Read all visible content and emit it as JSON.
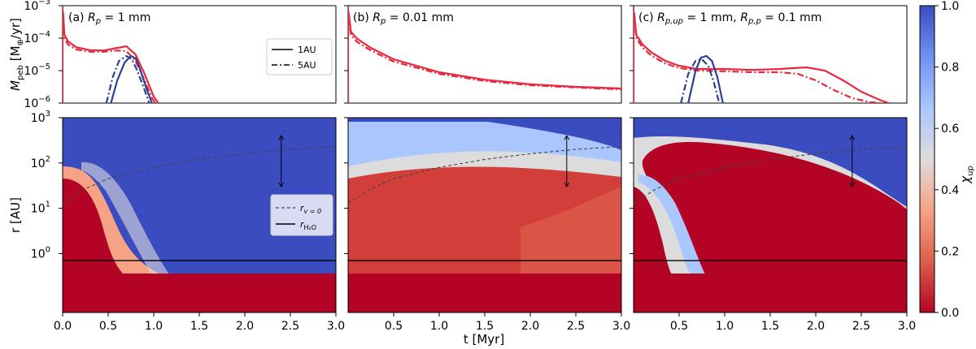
{
  "chart_data": {
    "type": "heatmap",
    "panels": [
      {
        "id": "a",
        "label": "(a)",
        "title_math": [
          "R",
          "p",
          " = 1 mm"
        ]
      },
      {
        "id": "b",
        "label": "(b)",
        "title_math": [
          "R",
          "p",
          " = 0.01 mm"
        ]
      },
      {
        "id": "c",
        "label": "(c)",
        "title_math": [
          "R",
          "p,up",
          " = 1 mm, ",
          "R",
          "p,p",
          " = 0.1 mm"
        ]
      }
    ],
    "x_axis": {
      "label": "t [Myr]",
      "range": [
        0,
        3
      ],
      "ticks_first": [
        "0.0",
        "0.5",
        "1.0",
        "1.5",
        "2.0",
        "2.5",
        "3.0"
      ],
      "ticks_other": [
        "0.5",
        "1.0",
        "1.5",
        "2.0",
        "2.5",
        "3.0"
      ]
    },
    "top_y_axis": {
      "label_main": "M",
      "label_sub": "peb",
      "label_units": " [M",
      "label_units_sub": "⊕",
      "label_units_end": "/yr]",
      "range_log10": [
        -6,
        -3
      ],
      "ticks": [
        {
          "base": "10",
          "exp": "−3"
        },
        {
          "base": "10",
          "exp": "−4"
        },
        {
          "base": "10",
          "exp": "−5"
        },
        {
          "base": "10",
          "exp": "−6"
        }
      ]
    },
    "bottom_y_axis": {
      "label": "r [AU]",
      "range_log10": [
        -1.3,
        3
      ],
      "ticks": [
        {
          "base": "10",
          "exp": "3"
        },
        {
          "base": "10",
          "exp": "2"
        },
        {
          "base": "10",
          "exp": "1"
        },
        {
          "base": "10",
          "exp": "0"
        }
      ]
    },
    "colorbar": {
      "label_main": "χ",
      "label_sub": "up",
      "range": [
        0,
        1
      ],
      "ticks": [
        "0.0",
        "0.2",
        "0.4",
        "0.6",
        "0.8",
        "1.0"
      ],
      "colors": [
        "#b40426",
        "#dd5f4b",
        "#f6a385",
        "#dddcdc",
        "#aac7fd",
        "#6f92f3",
        "#3b4cc0"
      ]
    },
    "legend_top": [
      {
        "label": "1AU",
        "style": "solid"
      },
      {
        "label": "5AU",
        "style": "dashdot"
      }
    ],
    "legend_bottom": [
      {
        "label_main": "r",
        "label_sub": "v = 0",
        "style": "dashed"
      },
      {
        "label_main": "r",
        "label_sub": "H₂O",
        "style": "solid"
      }
    ],
    "series_colors": {
      "red": "#e8283c",
      "blue": "#2f3f93",
      "water_line": "#000000",
      "rv0": "#444444"
    },
    "snowline_r_au": 0.7,
    "rv0_curve": {
      "t": [
        0,
        0.25,
        0.5,
        1.0,
        1.5,
        2.0,
        2.5,
        3.0
      ],
      "r_au": [
        13,
        27,
        45,
        80,
        120,
        160,
        200,
        230
      ]
    },
    "arrow": {
      "t": 2.4,
      "r_low": 30,
      "r_high": 400
    },
    "mdot": {
      "a": {
        "red_1AU": {
          "t": [
            0.005,
            0.02,
            0.06,
            0.15,
            0.3,
            0.45,
            0.6,
            0.7,
            0.8,
            0.9,
            1.0,
            1.05
          ],
          "log10": [
            -3.2,
            -3.9,
            -4.1,
            -4.28,
            -4.37,
            -4.38,
            -4.3,
            -4.25,
            -4.5,
            -5.1,
            -5.8,
            -6.0
          ]
        },
        "red_5AU": {
          "t": [
            0.005,
            0.02,
            0.06,
            0.15,
            0.3,
            0.45,
            0.6,
            0.7,
            0.8,
            0.9,
            0.98,
            1.02
          ],
          "log10": [
            -3.3,
            -4.0,
            -4.2,
            -4.35,
            -4.42,
            -4.42,
            -4.38,
            -4.4,
            -4.7,
            -5.3,
            -5.85,
            -6.0
          ]
        },
        "blue_1AU": {
          "t": [
            0.53,
            0.6,
            0.68,
            0.75,
            0.8,
            0.85,
            0.92,
            0.98
          ],
          "log10": [
            -6.0,
            -5.3,
            -4.75,
            -4.55,
            -4.62,
            -4.95,
            -5.55,
            -6.0
          ]
        },
        "blue_5AU": {
          "t": [
            0.48,
            0.55,
            0.62,
            0.7,
            0.76,
            0.82,
            0.9,
            0.95
          ],
          "log10": [
            -6.0,
            -5.2,
            -4.7,
            -4.55,
            -4.65,
            -5.0,
            -5.6,
            -6.0
          ]
        }
      },
      "b": {
        "red_1AU": {
          "t": [
            0.005,
            0.03,
            0.1,
            0.25,
            0.5,
            1.0,
            1.5,
            2.0,
            2.5,
            3.0
          ],
          "log10": [
            -3.2,
            -3.8,
            -4.02,
            -4.3,
            -4.65,
            -5.05,
            -5.28,
            -5.42,
            -5.5,
            -5.55
          ]
        },
        "red_5AU": {
          "t": [
            0.005,
            0.03,
            0.1,
            0.25,
            0.5,
            1.0,
            1.5,
            2.0,
            2.5,
            3.0
          ],
          "log10": [
            -3.3,
            -3.9,
            -4.12,
            -4.38,
            -4.72,
            -5.1,
            -5.32,
            -5.45,
            -5.52,
            -5.58
          ]
        }
      },
      "c": {
        "red_1AU": {
          "t": [
            0.005,
            0.03,
            0.1,
            0.2,
            0.35,
            0.5,
            0.7,
            1.0,
            1.3,
            1.6,
            1.9,
            2.1,
            2.3,
            2.5,
            2.7,
            2.8
          ],
          "log10": [
            -3.2,
            -3.9,
            -4.2,
            -4.45,
            -4.7,
            -4.85,
            -4.95,
            -4.95,
            -4.98,
            -4.95,
            -4.9,
            -5.0,
            -5.3,
            -5.65,
            -5.9,
            -6.0
          ]
        },
        "red_5AU": {
          "t": [
            0.005,
            0.03,
            0.1,
            0.2,
            0.35,
            0.5,
            0.7,
            1.0,
            1.3,
            1.6,
            1.8,
            2.0,
            2.2,
            2.4,
            2.6,
            2.72
          ],
          "log10": [
            -3.3,
            -4.0,
            -4.3,
            -4.55,
            -4.78,
            -4.92,
            -5.0,
            -5.02,
            -5.05,
            -5.05,
            -5.1,
            -5.3,
            -5.6,
            -5.85,
            -5.97,
            -6.0
          ]
        },
        "blue_1AU": {
          "t": [
            0.6,
            0.68,
            0.74,
            0.8,
            0.86,
            0.92,
            0.98
          ],
          "log10": [
            -6.0,
            -5.0,
            -4.6,
            -4.55,
            -4.7,
            -5.2,
            -6.0
          ]
        },
        "blue_5AU": {
          "t": [
            0.52,
            0.6,
            0.68,
            0.75,
            0.82,
            0.88,
            0.94
          ],
          "log10": [
            -6.0,
            -5.1,
            -4.7,
            -4.65,
            -4.85,
            -5.35,
            -6.0
          ]
        }
      }
    }
  }
}
